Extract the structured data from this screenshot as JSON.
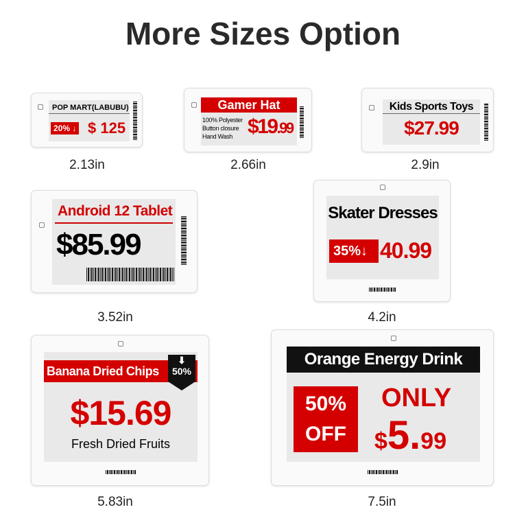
{
  "title": "More Sizes Option",
  "colors": {
    "accent": "#d40000",
    "text": "#2a2a2a",
    "screen": "#e9e9e9"
  },
  "tags": [
    {
      "size": "2.13in",
      "name": "POP MART(LABUBU)",
      "discount": "20% ↓",
      "price": "$ 125"
    },
    {
      "size": "2.66in",
      "name": "Gamer Hat",
      "details": [
        "100% Polyester",
        "Button closure",
        "Hand Wash"
      ],
      "price": "$19",
      "cents": ".99"
    },
    {
      "size": "2.9in",
      "name": "Kids Sports Toys",
      "price": "$27.99"
    },
    {
      "size": "3.52in",
      "name": "Android 12 Tablet",
      "price": "$85.99"
    },
    {
      "size": "4.2in",
      "name": "Skater Dresses",
      "discount": "35%",
      "arrow": "↓",
      "price": "40.99"
    },
    {
      "size": "5.83in",
      "name": "Banana Dried Chips",
      "badge": "50%",
      "price": "$15.69",
      "subtitle": "Fresh Dried Fruits"
    },
    {
      "size": "7.5in",
      "name": "Orange Energy Drink",
      "badge_top": "50%",
      "badge_bottom": "OFF",
      "only": "ONLY",
      "price_sym": "$",
      "price_main": "5.",
      "price_cents": "99"
    }
  ]
}
